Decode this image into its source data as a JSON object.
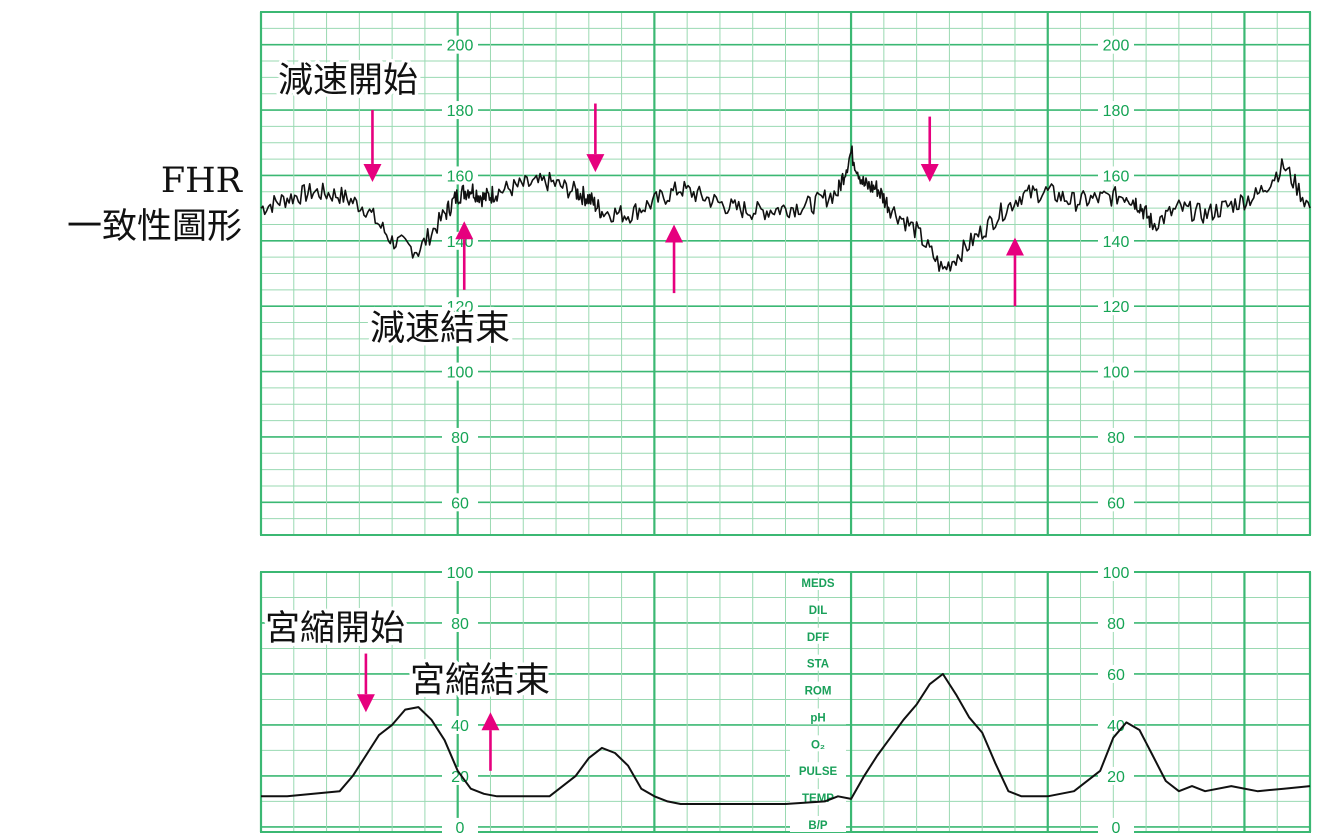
{
  "chart_data": [
    {
      "type": "line",
      "title": "",
      "xlabel": "",
      "ylabel": "",
      "side_label_lines": [
        "FHR",
        "一致性圖形"
      ],
      "y_ticks": [
        60,
        80,
        100,
        120,
        140,
        160,
        180,
        200
      ],
      "ylim": [
        50,
        210
      ],
      "x": [
        0,
        4,
        8,
        12,
        16,
        20,
        24,
        28,
        30,
        32,
        34,
        36,
        40,
        44,
        48,
        50,
        52,
        56,
        60,
        64,
        68,
        72,
        76,
        80,
        84,
        88,
        90,
        92,
        94,
        96,
        100,
        104,
        108,
        112,
        116,
        120,
        124,
        128,
        132,
        134,
        136,
        140,
        144,
        148,
        152,
        156,
        160
      ],
      "series": [
        {
          "values": [
            150,
            153,
            155,
            154,
            150,
            140,
            137,
            148,
            154,
            156,
            153,
            155,
            157,
            158,
            155,
            153,
            149,
            148,
            152,
            156,
            153,
            150,
            149,
            150,
            151,
            155,
            167,
            157,
            156,
            150,
            143,
            131,
            139,
            147,
            154,
            155,
            152,
            153,
            154,
            151,
            145,
            150,
            148,
            151,
            154,
            163,
            150
          ]
        }
      ],
      "annotations": [
        {
          "text": "減速開始",
          "arrow_x": 17,
          "arrow_from": 180,
          "arrow_to": 158
        },
        {
          "arrow_x": 51,
          "arrow_from": 182,
          "arrow_to": 161
        },
        {
          "arrow_x": 102,
          "arrow_from": 178,
          "arrow_to": 158
        },
        {
          "text": "減速結束",
          "arrow_x": 31,
          "arrow_from": 125,
          "arrow_to": 146
        },
        {
          "arrow_x": 63,
          "arrow_from": 124,
          "arrow_to": 145
        },
        {
          "arrow_x": 115,
          "arrow_from": 120,
          "arrow_to": 141
        }
      ]
    },
    {
      "type": "line",
      "title": "",
      "xlabel": "",
      "ylabel": "",
      "y_ticks": [
        0,
        20,
        40,
        60,
        80,
        100
      ],
      "ylim": [
        -2,
        100
      ],
      "x": [
        0,
        4,
        8,
        12,
        14,
        16,
        18,
        20,
        22,
        24,
        26,
        28,
        30,
        32,
        34,
        36,
        40,
        44,
        48,
        50,
        52,
        54,
        56,
        58,
        60,
        62,
        64,
        70,
        80,
        86,
        88,
        90,
        92,
        94,
        96,
        98,
        100,
        102,
        104,
        106,
        108,
        110,
        112,
        114,
        116,
        120,
        124,
        128,
        130,
        132,
        134,
        136,
        138,
        140,
        142,
        144,
        148,
        152,
        156,
        160
      ],
      "series": [
        {
          "values": [
            12,
            12,
            13,
            14,
            20,
            28,
            36,
            40,
            46,
            47,
            42,
            34,
            22,
            15,
            13,
            12,
            12,
            12,
            20,
            27,
            31,
            29,
            24,
            15,
            12,
            10,
            9,
            9,
            9,
            10,
            12,
            11,
            20,
            28,
            35,
            42,
            48,
            56,
            60,
            52,
            43,
            37,
            25,
            14,
            12,
            12,
            14,
            22,
            35,
            41,
            38,
            28,
            18,
            14,
            16,
            14,
            16,
            14,
            15,
            16
          ]
        }
      ],
      "annotations": [
        {
          "text": "宮縮開始",
          "arrow_x": 16,
          "arrow_from": 68,
          "arrow_to": 45
        },
        {
          "text": "宮縮結束",
          "arrow_x": 35,
          "arrow_from": 22,
          "arrow_to": 45
        }
      ],
      "monitor_labels": [
        "MEDS",
        "DIL",
        "DFF",
        "STA",
        "ROM",
        "pH",
        "O₂",
        "PULSE",
        "TEMP",
        "B/P"
      ]
    }
  ]
}
